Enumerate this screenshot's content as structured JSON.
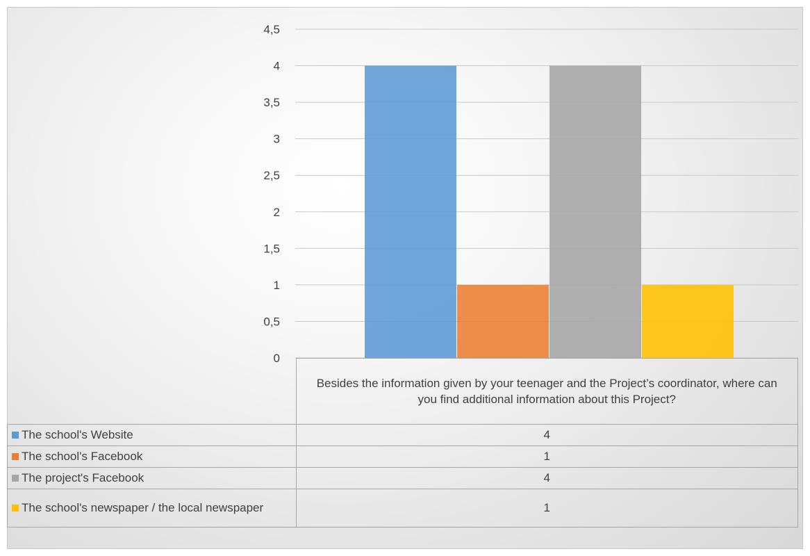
{
  "chart_data": {
    "type": "bar",
    "categories": [
      "Besides the information given by your teenager and the Project’s coordinator, where can you find additional information about this Project?"
    ],
    "series": [
      {
        "name": "The school's Website",
        "values": [
          4
        ],
        "color": "#5b9bd5"
      },
      {
        "name": "The school's Facebook",
        "values": [
          1
        ],
        "color": "#ed7d31"
      },
      {
        "name": "The project's Facebook",
        "values": [
          4
        ],
        "color": "#a5a5a5"
      },
      {
        "name": "The school's newspaper / the local newspaper",
        "values": [
          1
        ],
        "color": "#ffc000"
      }
    ],
    "y_ticks": [
      "0",
      "0,5",
      "1",
      "1,5",
      "2",
      "2,5",
      "3",
      "3,5",
      "4",
      "4,5"
    ],
    "ylim": [
      0,
      4.5
    ],
    "grid": true,
    "legend": "data table",
    "title": "",
    "xlabel": "",
    "ylabel": ""
  }
}
